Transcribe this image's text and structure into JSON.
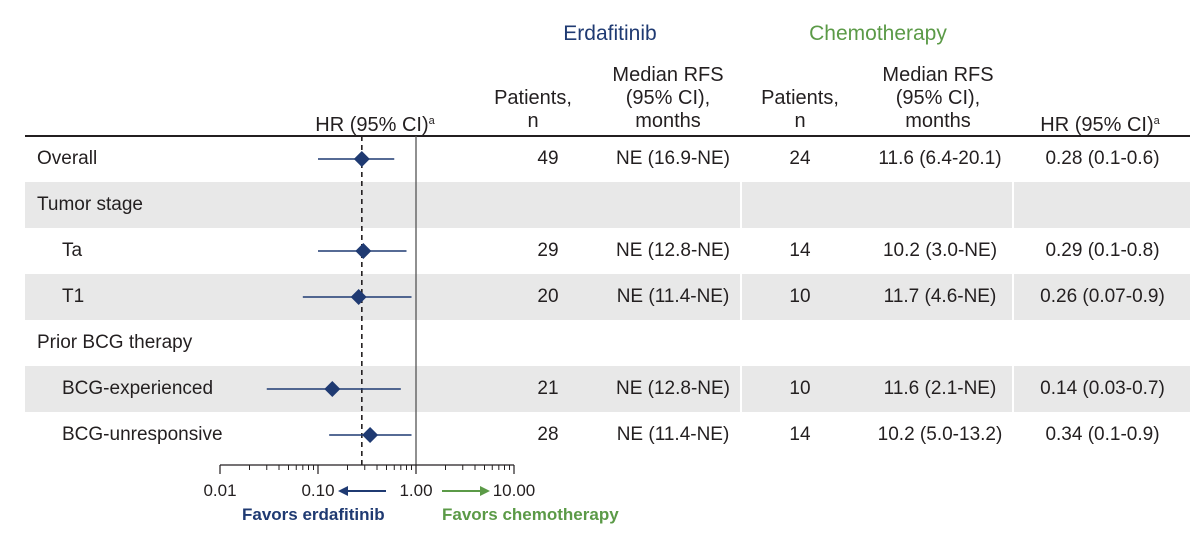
{
  "groups": {
    "erdafitinib": "Erdafitinib",
    "chemotherapy": "Chemotherapy"
  },
  "headers": {
    "hr_plot": "HR (95% CI)",
    "hr_plot_sup": "a",
    "patients": [
      "Patients,",
      "n"
    ],
    "median_rfs": [
      "Median RFS",
      "(95% CI),",
      "months"
    ],
    "hr_col": "HR (95% CI)",
    "hr_col_sup": "a"
  },
  "colors": {
    "erdafitinib": "#1f3a72",
    "chemotherapy": "#5b9a47",
    "marker": "#1f3a72",
    "shade": "#e8e8e8"
  },
  "axis": {
    "tick_labels": [
      "0.01",
      "0.10",
      "1.00",
      "10.00"
    ],
    "favors_left": "Favors erdafitinib",
    "favors_right": "Favors chemotherapy"
  },
  "chart_data": {
    "type": "forest",
    "x_scale": "log",
    "xlim": [
      0.01,
      10
    ],
    "reference_line": 1,
    "pooled_line": 0.28,
    "rows": [
      {
        "label": "Overall",
        "indent": false,
        "shaded": false,
        "is_header": false,
        "hr": 0.28,
        "lo": 0.1,
        "hi": 0.6,
        "erd_n": "49",
        "erd_rfs": "NE (16.9-NE)",
        "chemo_n": "24",
        "chemo_rfs": "11.6 (6.4-20.1)",
        "hr_text": "0.28 (0.1-0.6)"
      },
      {
        "label": "Tumor stage",
        "indent": false,
        "shaded": true,
        "is_header": true
      },
      {
        "label": "Ta",
        "indent": true,
        "shaded": false,
        "is_header": false,
        "hr": 0.29,
        "lo": 0.1,
        "hi": 0.8,
        "erd_n": "29",
        "erd_rfs": "NE (12.8-NE)",
        "chemo_n": "14",
        "chemo_rfs": "10.2 (3.0-NE)",
        "hr_text": "0.29 (0.1-0.8)"
      },
      {
        "label": "T1",
        "indent": true,
        "shaded": true,
        "is_header": false,
        "hr": 0.26,
        "lo": 0.07,
        "hi": 0.9,
        "erd_n": "20",
        "erd_rfs": "NE (11.4-NE)",
        "chemo_n": "10",
        "chemo_rfs": "11.7 (4.6-NE)",
        "hr_text": "0.26 (0.07-0.9)"
      },
      {
        "label": "Prior BCG therapy",
        "indent": false,
        "shaded": false,
        "is_header": true
      },
      {
        "label": "BCG-experienced",
        "indent": true,
        "shaded": true,
        "is_header": false,
        "hr": 0.14,
        "lo": 0.03,
        "hi": 0.7,
        "erd_n": "21",
        "erd_rfs": "NE (12.8-NE)",
        "chemo_n": "10",
        "chemo_rfs": "11.6 (2.1-NE)",
        "hr_text": "0.14 (0.03-0.7)"
      },
      {
        "label": "BCG-unresponsive",
        "indent": true,
        "shaded": false,
        "is_header": false,
        "hr": 0.34,
        "lo": 0.13,
        "hi": 0.9,
        "erd_n": "28",
        "erd_rfs": "NE (11.4-NE)",
        "chemo_n": "14",
        "chemo_rfs": "10.2 (5.0-13.2)",
        "hr_text": "0.34 (0.1-0.9)"
      }
    ]
  }
}
